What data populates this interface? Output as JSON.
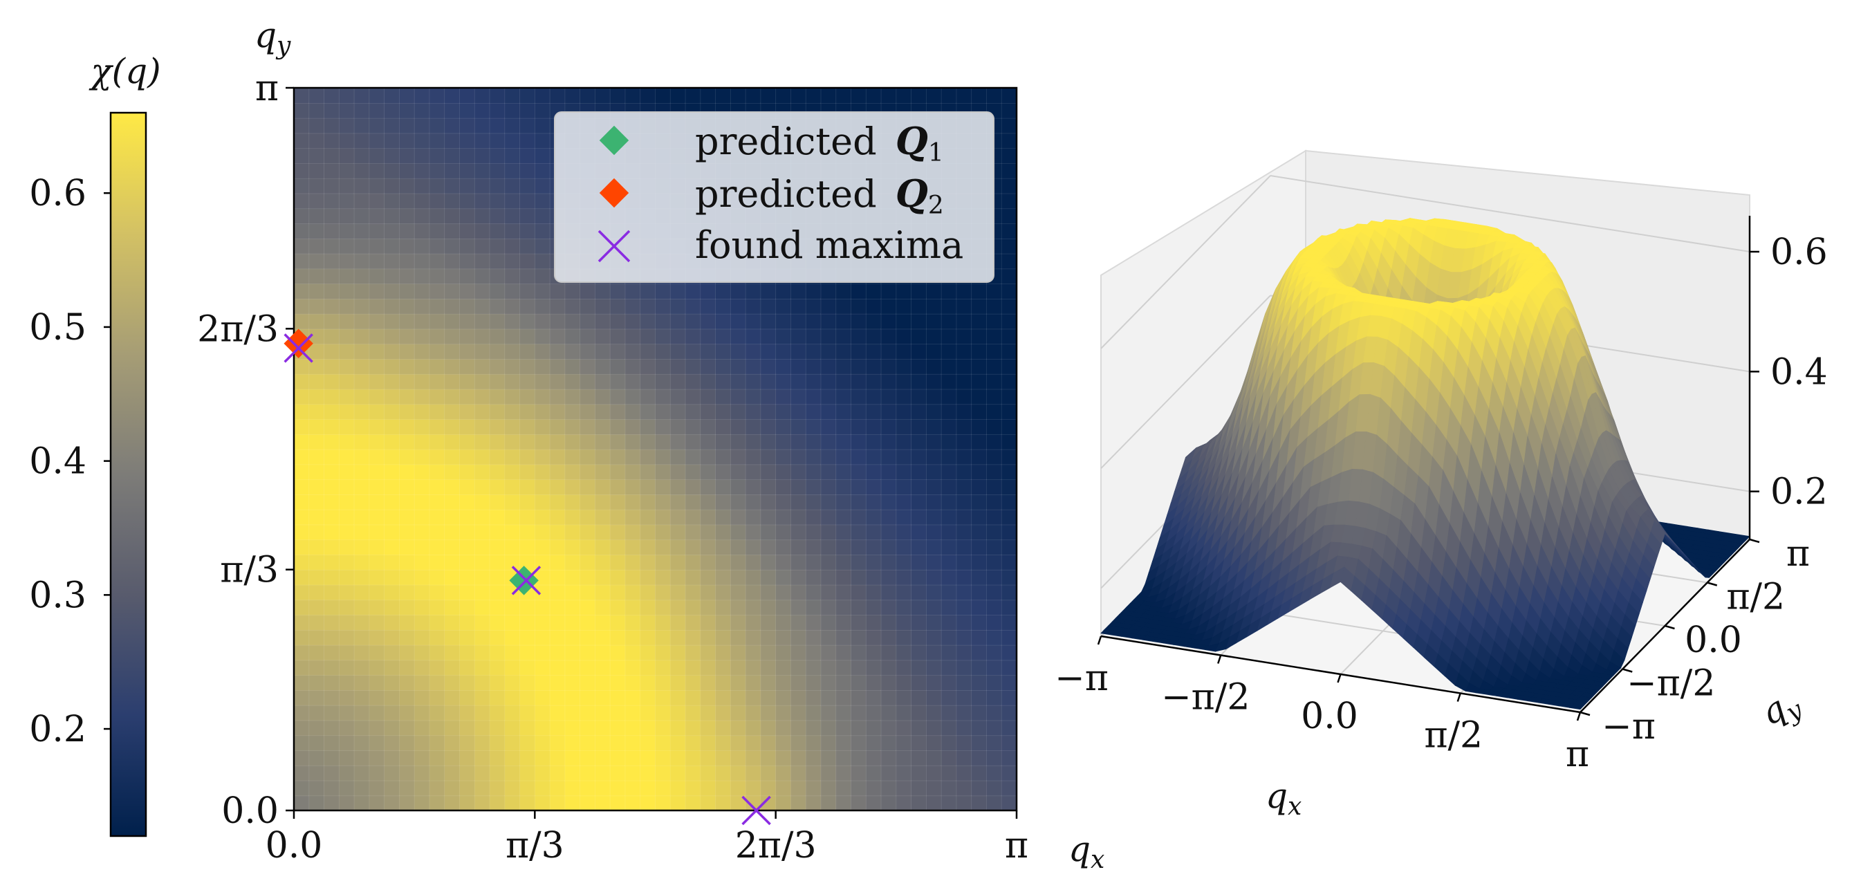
{
  "colors": {
    "cmap": [
      "#00204c",
      "#2b3e6f",
      "#585b6d",
      "#7d7c78",
      "#a69d75",
      "#d3c164",
      "#ffe945"
    ],
    "q1_marker": "#3cb371",
    "q2_marker": "#ff4500",
    "maxima_marker": "#8a2be2"
  },
  "chart_data": [
    {
      "type": "colorbar",
      "title": "χ(q)",
      "range": [
        0.12,
        0.66
      ],
      "ticks": [
        0.2,
        0.3,
        0.4,
        0.5,
        0.6
      ],
      "tick_labels": [
        "0.2",
        "0.3",
        "0.4",
        "0.5",
        "0.6"
      ]
    },
    {
      "type": "heatmap",
      "x_label": "q",
      "x_sub": "x",
      "y_label": "q",
      "y_sub": "y",
      "xlim": [
        0,
        3.1416
      ],
      "ylim": [
        0,
        3.1416
      ],
      "x_ticks": [
        0,
        1.0472,
        2.0944,
        3.1416
      ],
      "x_tick_labels": [
        "0.0",
        "π/3",
        "2π/3",
        "π"
      ],
      "y_ticks": [
        0,
        1.0472,
        2.0944,
        3.1416
      ],
      "y_tick_labels": [
        "0.0",
        "π/3",
        "2π/3",
        "π"
      ],
      "grid_cells": 48,
      "legend": {
        "placement": "top-right",
        "entries": [
          {
            "text": "predicted",
            "math": "Q",
            "sub": "1",
            "marker": "diamond",
            "color": "#3cb371"
          },
          {
            "text": "predicted",
            "math": "Q",
            "sub": "2",
            "marker": "diamond",
            "color": "#ff4500"
          },
          {
            "text": "found maxima",
            "math": "",
            "sub": "",
            "marker": "x",
            "color": "#8a2be2"
          }
        ]
      },
      "points": [
        {
          "series": "predicted Q1",
          "x": 1.0,
          "y": 1.0
        },
        {
          "series": "predicted Q2",
          "x": 0.02,
          "y": 2.03
        },
        {
          "series": "found maxima",
          "x": 1.01,
          "y": 1.0
        },
        {
          "series": "found maxima",
          "x": 0.02,
          "y": 2.01
        },
        {
          "series": "found maxima",
          "x": 2.01,
          "y": 0.0
        }
      ]
    },
    {
      "type": "surface",
      "x_label": "q",
      "x_sub": "x",
      "y_label": "q",
      "y_sub": "y",
      "xlim": [
        -3.1416,
        3.1416
      ],
      "ylim": [
        -3.1416,
        3.1416
      ],
      "zlim": [
        0.12,
        0.66
      ],
      "x_tick_labels": [
        "−π",
        "−π/2",
        "0.0",
        "π/2",
        "π"
      ],
      "y_tick_labels": [
        "−π",
        "−π/2",
        "0.0",
        "π/2",
        "π"
      ],
      "z_ticks": [
        0.2,
        0.4,
        0.6
      ],
      "z_tick_labels": [
        "0.2",
        "0.4",
        "0.6"
      ]
    }
  ]
}
